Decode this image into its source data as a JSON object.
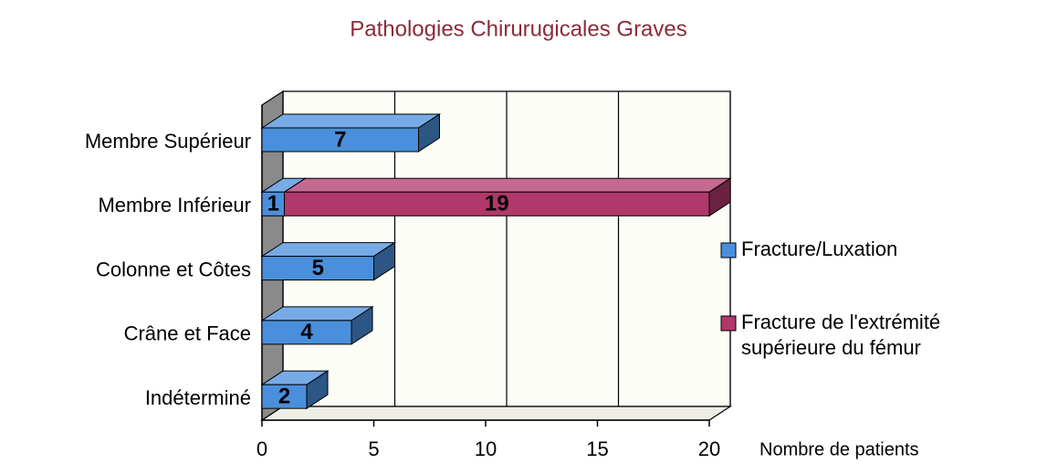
{
  "chart_data": {
    "type": "bar",
    "orientation": "horizontal",
    "stacked": true,
    "title": "Pathologies Chirurugicales Graves",
    "x_label": "Nombre de patients",
    "categories": [
      "Membre Supérieur",
      "Membre Inférieur",
      "Colonne et Côtes",
      "Crâne et Face",
      "Indéterminé"
    ],
    "series": [
      {
        "name": "Fracture/Luxation",
        "color": "#4a8fdc",
        "values": [
          7,
          1,
          5,
          4,
          2
        ]
      },
      {
        "name": "Fracture de l'extrémité supérieure du fémur",
        "color": "#b0386a",
        "values": [
          null,
          19,
          null,
          null,
          null
        ]
      }
    ],
    "xlim": [
      0,
      20
    ],
    "xticks": [
      0,
      5,
      10,
      15,
      20
    ],
    "grid": true,
    "legend": "right"
  }
}
